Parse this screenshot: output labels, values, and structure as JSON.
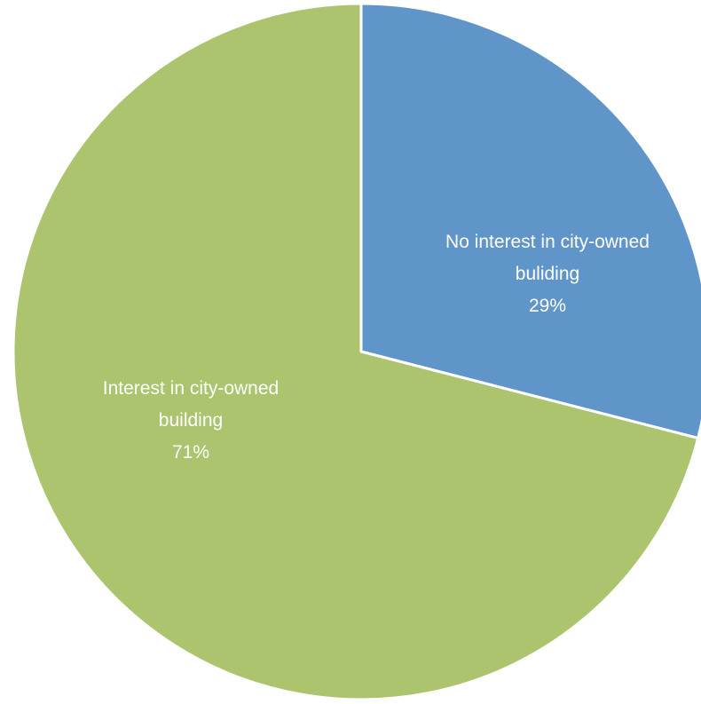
{
  "chart_data": {
    "type": "pie",
    "title": "",
    "start_angle_deg": 0,
    "direction": "clockwise",
    "slices": [
      {
        "label_lines": [
          "No interest in city-owned",
          "buliding"
        ],
        "value": 29,
        "value_label": "29%",
        "color": "#6095c9"
      },
      {
        "label_lines": [
          "Interest in city-owned",
          "building"
        ],
        "value": 71,
        "value_label": "71%",
        "color": "#abc46d"
      }
    ],
    "slice_border_color": "#ffffff",
    "label_color": "#ffffff",
    "legend": "none"
  }
}
